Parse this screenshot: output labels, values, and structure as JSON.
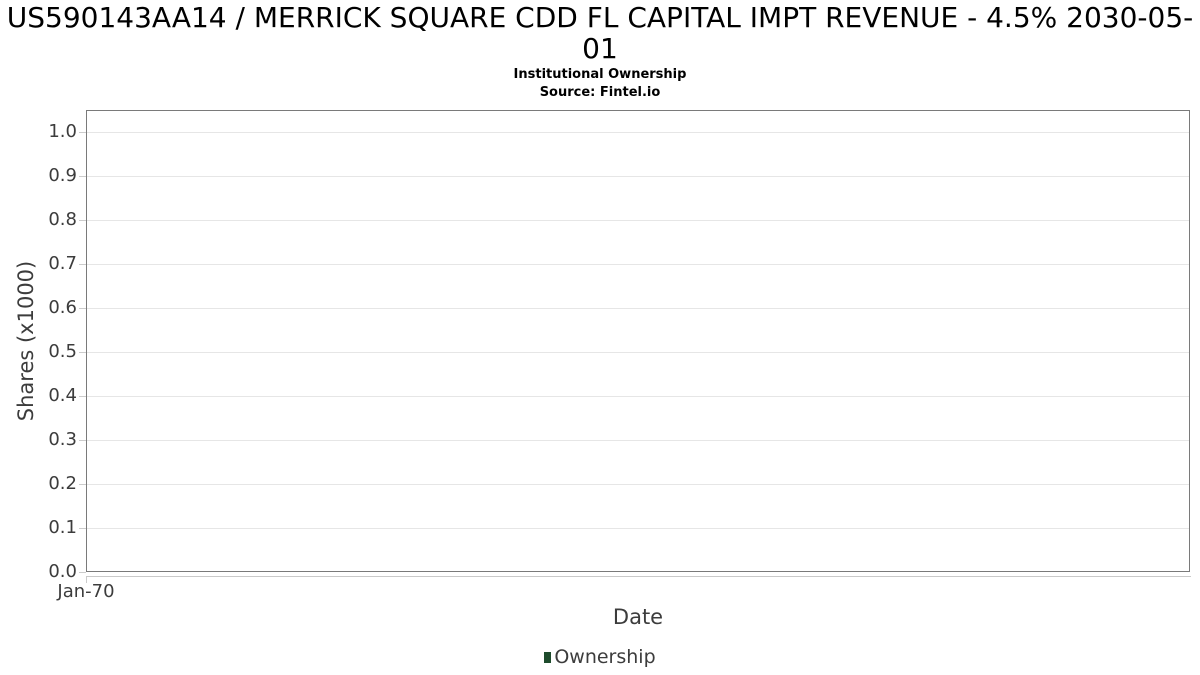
{
  "chart": {
    "title": "US590143AA14 / MERRICK SQUARE CDD FL CAPITAL IMPT REVENUE - 4.5% 2030-05-01",
    "subtitle": "Institutional Ownership",
    "source": "Source: Fintel.io",
    "y_axis": {
      "label": "Shares (x1000)",
      "tick_labels": [
        "0.0",
        "0.1",
        "0.2",
        "0.3",
        "0.4",
        "0.5",
        "0.6",
        "0.7",
        "0.8",
        "0.9",
        "1.0"
      ]
    },
    "x_axis": {
      "label": "Date",
      "tick_labels": [
        "Jan-70"
      ]
    },
    "legend": [
      {
        "label": "Ownership",
        "marker_color": "#1e4b2c"
      }
    ],
    "colors": {
      "grid": "#e6e6e6",
      "plot_border": "#7a7a7a",
      "axis_line": "#c9c9c9",
      "tick_mark": "#cccccc",
      "axis_text": "#3c3c3c",
      "title_text": "#000000"
    }
  },
  "chart_data": {
    "type": "bar",
    "title": "US590143AA14 / MERRICK SQUARE CDD FL CAPITAL IMPT REVENUE - 4.5% 2030-05-01",
    "subtitle": "Institutional Ownership",
    "source": "Source: Fintel.io",
    "xlabel": "Date",
    "ylabel": "Shares (x1000)",
    "x_tick_labels": [
      "Jan-70"
    ],
    "y_ticks": [
      0.0,
      0.1,
      0.2,
      0.3,
      0.4,
      0.5,
      0.6,
      0.7,
      0.8,
      0.9,
      1.0
    ],
    "ylim": [
      0,
      1.05
    ],
    "grid": true,
    "legend_position": "bottom",
    "series": [
      {
        "name": "Ownership",
        "color": "#1e4b2c",
        "x": [],
        "values": []
      }
    ]
  }
}
